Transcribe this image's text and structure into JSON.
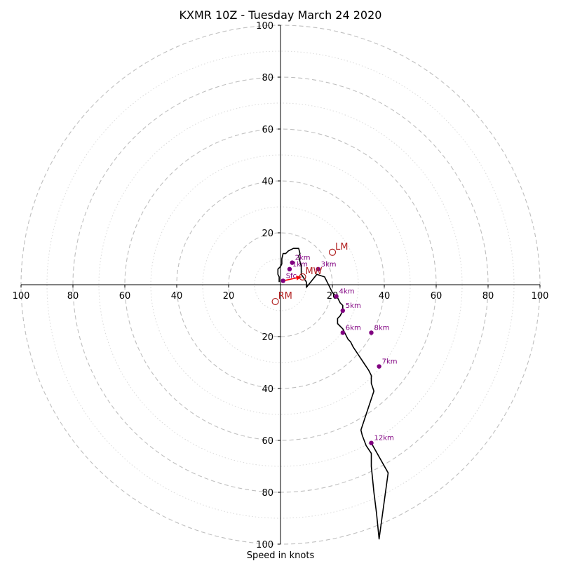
{
  "chart_data": {
    "type": "line",
    "title": "KXMR 10Z - Tuesday March 24 2020",
    "xlabel": "Speed in knots",
    "ylabel": "",
    "xlim": [
      -100,
      100
    ],
    "ylim": [
      -100,
      100
    ],
    "ring_major": [
      20,
      40,
      60,
      80,
      100
    ],
    "ring_minor": [
      10,
      30,
      50,
      70,
      90
    ],
    "x_tick_labels": [
      "100",
      "80",
      "60",
      "40",
      "20",
      "20",
      "40",
      "60",
      "80",
      "100"
    ],
    "y_tick_labels": [
      "100",
      "80",
      "60",
      "40",
      "20",
      "20",
      "40",
      "60",
      "80",
      "100"
    ],
    "grid": true,
    "hodograph": {
      "name": "",
      "color": "#000000",
      "x": [
        -0.5,
        -0.5,
        -1,
        -1,
        0,
        0.5,
        0.5,
        1,
        2,
        3,
        5,
        7,
        7.5,
        7,
        8,
        8,
        10,
        10,
        14,
        17,
        18,
        19,
        20,
        21,
        22,
        23,
        24,
        24,
        23,
        22,
        22,
        24,
        25,
        26,
        27,
        28,
        30,
        32,
        34,
        35,
        35,
        36,
        35,
        34,
        33,
        32,
        31,
        31.5,
        33,
        35,
        35,
        36,
        37,
        38,
        41.5,
        35
      ],
      "y": [
        1,
        3,
        4,
        6,
        7,
        8,
        10,
        12,
        12,
        13,
        14,
        14,
        12,
        11,
        7,
        4,
        1,
        -1,
        4,
        3,
        1,
        -1,
        -3,
        -4,
        -5,
        -7,
        -8,
        -10,
        -12,
        -13,
        -15,
        -17,
        -19,
        -21,
        -22,
        -24,
        -27,
        -30,
        -33,
        -35,
        -38,
        -41,
        -44,
        -47,
        -50,
        -53,
        -56,
        -58,
        -62,
        -65,
        -70,
        -80,
        -88,
        -98,
        -72.5,
        -61
      ]
    },
    "height_markers": [
      {
        "label": "2km",
        "x": 4.5,
        "y": 8.5
      },
      {
        "label": "1km",
        "x": 3.5,
        "y": 6
      },
      {
        "label": "Sfc",
        "x": 1,
        "y": 1.5
      },
      {
        "label": "3km",
        "x": 14.5,
        "y": 6
      },
      {
        "label": "4km",
        "x": 21.5,
        "y": -4.5
      },
      {
        "label": "5km",
        "x": 24,
        "y": -10
      },
      {
        "label": "6km",
        "x": 24,
        "y": -18.5
      },
      {
        "label": "8km",
        "x": 35,
        "y": -18.5
      },
      {
        "label": "7km",
        "x": 38,
        "y": -31.5
      },
      {
        "label": "12km",
        "x": 35,
        "y": -61
      }
    ],
    "storm_motion": [
      {
        "label": "LM",
        "x": 20,
        "y": 12.5
      },
      {
        "label": "MW",
        "x": 8.5,
        "y": 3
      },
      {
        "label": "RM",
        "x": -2,
        "y": -6.5
      }
    ],
    "storm_motion_vector": {
      "from": [
        1,
        1.5
      ],
      "to": [
        8,
        3
      ],
      "color": "#ff0000"
    },
    "colors": {
      "hodograph": "#000000",
      "height_marker": "#800080",
      "storm_motion": "#b22222",
      "vector": "#ff0000",
      "ring_major": "#bfbfbf",
      "ring_minor": "#d9d9d9"
    }
  }
}
